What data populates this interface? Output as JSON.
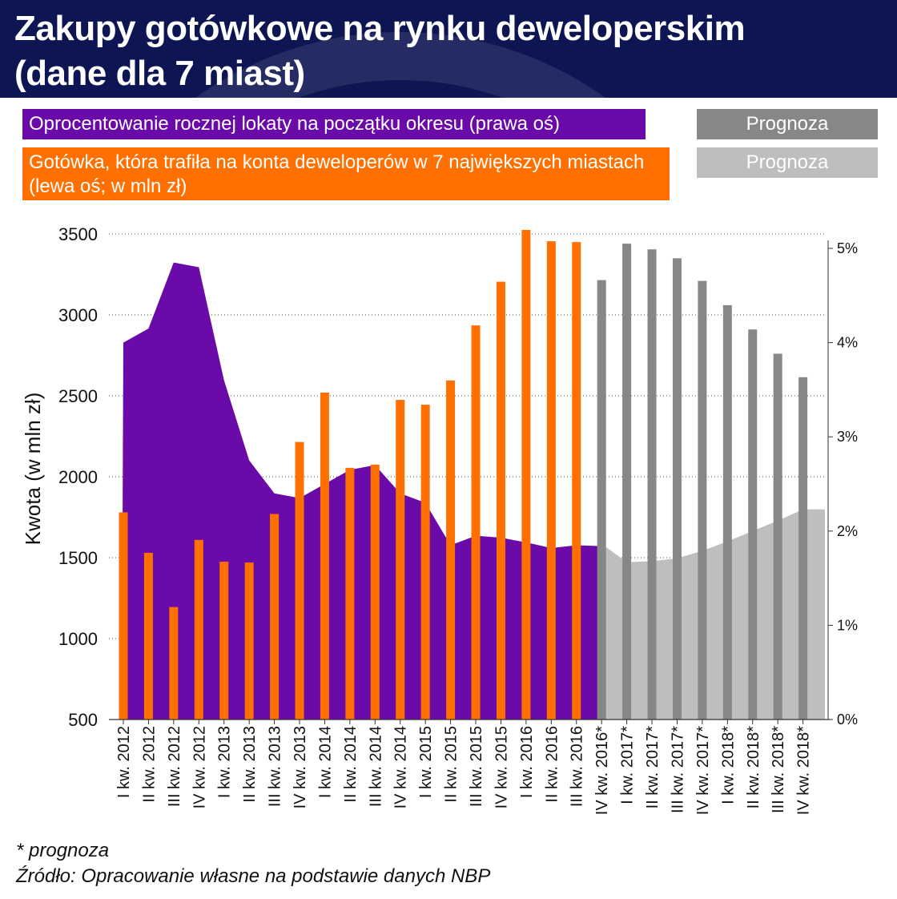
{
  "title": {
    "line1": "Zakupy gotówkowe na rynku deweloperskim",
    "line2": "(dane dla 7 miast)"
  },
  "legend": {
    "rate": "Oprocentowanie rocznej lokaty na początku okresu (prawa oś)",
    "cash": "Gotówka, która trafiła na konta deweloperów w 7 największych miastach (lewa oś; w mln zł)",
    "forecast_dark": "Prognoza",
    "forecast_light": "Prognoza"
  },
  "footnote": "* prognoza",
  "source": "Źródło: Opracowanie własne na podstawie danych NBP",
  "colors": {
    "header": "#0d1552",
    "rate_area": "#6a0aa8",
    "cash_bars": "#ff7000",
    "forecast_bars": "#878787",
    "forecast_area": "#bebebe"
  },
  "chart_data": {
    "type": "bar",
    "categories": [
      "I kw. 2012",
      "II kw. 2012",
      "III kw. 2012",
      "IV kw. 2012",
      "I kw. 2013",
      "II kw. 2013",
      "III kw. 2013",
      "IV kw. 2013",
      "I kw. 2014",
      "II kw. 2014",
      "III kw. 2014",
      "IV kw. 2014",
      "I kw. 2015",
      "II kw. 2015",
      "III kw. 2015",
      "IV kw. 2015",
      "I kw. 2016",
      "II kw. 2016",
      "III kw. 2016",
      "IV kw. 2016*",
      "I kw. 2017*",
      "II kw. 2017*",
      "III kw. 2017*",
      "IV kw. 2017*",
      "I kw. 2018*",
      "II kw. 2018*",
      "III kw. 2018*",
      "IV kw. 2018*"
    ],
    "forecast_start_index": 19,
    "series": [
      {
        "name": "Gotówka, która trafiła na konta deweloperów w 7 największych miastach (lewa oś; w mln zł)",
        "type": "bar",
        "axis": "left",
        "values": [
          1780,
          1530,
          1195,
          1610,
          1475,
          1470,
          1770,
          2215,
          2520,
          2055,
          2075,
          2475,
          2445,
          2595,
          2935,
          3205,
          3525,
          3455,
          3450,
          3215,
          3440,
          3405,
          3350,
          3210,
          3060,
          2910,
          2760,
          2615
        ]
      },
      {
        "name": "Oprocentowanie rocznej lokaty na początku okresu (prawa oś)",
        "type": "area",
        "axis": "right",
        "values": [
          4.0,
          4.15,
          4.85,
          4.8,
          3.6,
          2.75,
          2.4,
          2.35,
          2.5,
          2.65,
          2.7,
          2.4,
          2.3,
          1.85,
          1.95,
          1.93,
          1.88,
          1.82,
          1.85,
          1.84,
          1.67,
          1.68,
          1.71,
          1.79,
          1.89,
          2.0,
          2.11,
          2.23
        ]
      }
    ],
    "ylabel": "Kwota (w mln zł)",
    "ylim": [
      500,
      3500
    ],
    "yticks": [
      500,
      1000,
      1500,
      2000,
      2500,
      3000,
      3500
    ],
    "y2lim": [
      0,
      5
    ],
    "y2ticks": [
      "0%",
      "1%",
      "2%",
      "3%",
      "4%",
      "5%"
    ],
    "grid": true
  }
}
